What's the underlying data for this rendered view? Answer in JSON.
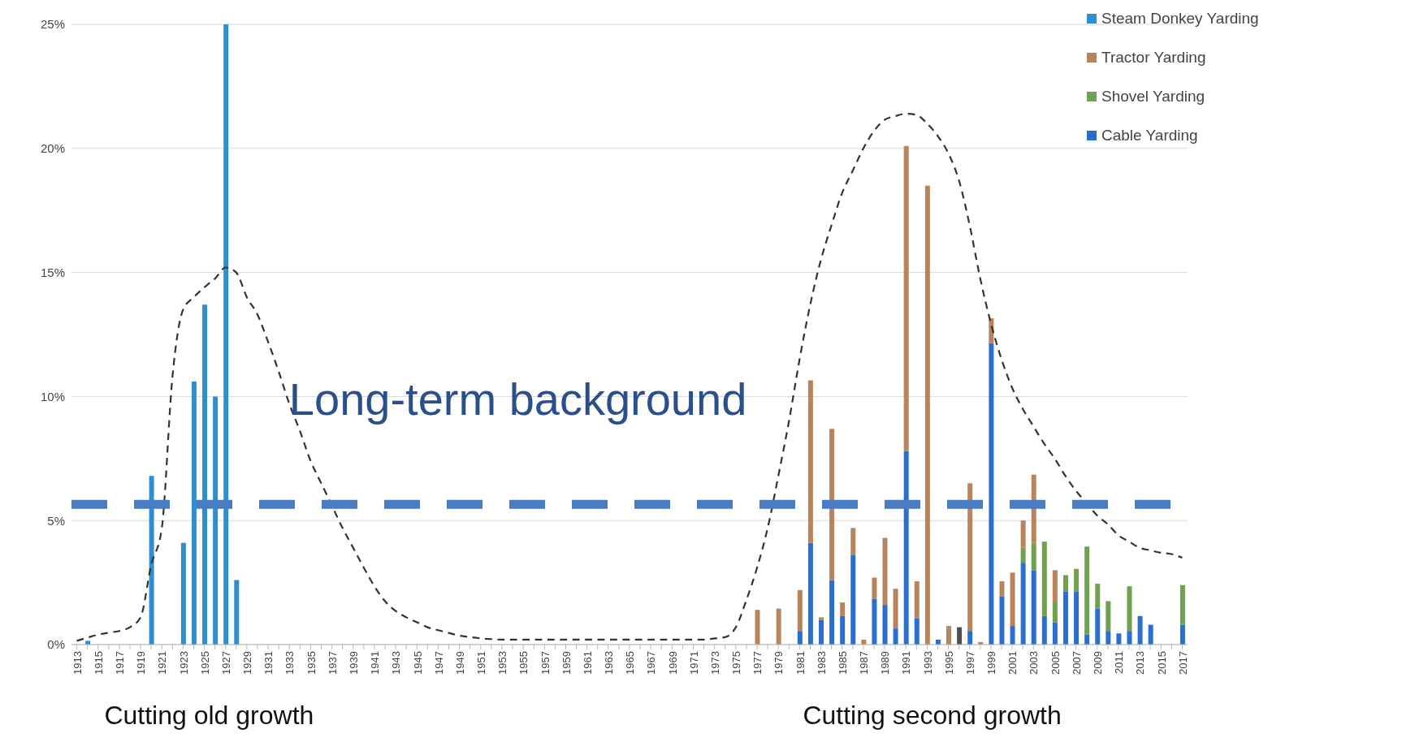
{
  "chart_data": {
    "type": "bar",
    "stacked": true,
    "grid": "y",
    "legend": "top right",
    "categories": [
      "1913",
      null,
      "1915",
      null,
      "1917",
      null,
      "1919",
      null,
      "1921",
      null,
      "1923",
      null,
      "1925",
      null,
      "1927",
      null,
      "1929",
      null,
      "1931",
      null,
      "1933",
      null,
      "1935",
      null,
      "1937",
      null,
      "1939",
      null,
      "1941",
      null,
      "1943",
      null,
      "1945",
      null,
      "1947",
      null,
      "1949",
      null,
      "1951",
      null,
      "1953",
      null,
      "1955",
      null,
      "1957",
      null,
      "1959",
      null,
      "1961",
      null,
      "1963",
      null,
      "1965",
      null,
      "1967",
      null,
      "1969",
      null,
      "1971",
      null,
      "1973",
      null,
      "1975",
      null,
      "1977",
      null,
      "1979",
      null,
      "1981",
      null,
      "1983",
      null,
      "1985",
      null,
      "1987",
      null,
      "1989",
      null,
      "1991",
      null,
      "1993",
      null,
      "1995",
      null,
      "1997",
      null,
      "1999",
      null,
      "2001",
      null,
      "2003",
      null,
      "2005",
      null,
      "2007",
      null,
      "2009",
      null,
      "2011",
      null,
      "2013",
      null,
      "2015",
      null,
      "2017"
    ],
    "ylim": [
      0,
      25
    ],
    "yticks": [
      {
        "value": 0,
        "label": "0%"
      },
      {
        "value": 5,
        "label": "5%"
      },
      {
        "value": 10,
        "label": "10%"
      },
      {
        "value": 15,
        "label": "15%"
      },
      {
        "value": 20,
        "label": "20%"
      },
      {
        "value": 25,
        "label": "25%"
      }
    ],
    "series": [
      {
        "name": "Cable Yarding",
        "color": "#2a6fd0",
        "values": [
          null,
          null,
          null,
          null,
          null,
          null,
          null,
          null,
          null,
          null,
          null,
          null,
          null,
          null,
          null,
          null,
          null,
          null,
          null,
          null,
          null,
          null,
          null,
          null,
          null,
          null,
          null,
          null,
          null,
          null,
          null,
          null,
          null,
          null,
          null,
          null,
          null,
          null,
          null,
          null,
          null,
          null,
          null,
          null,
          null,
          null,
          null,
          null,
          null,
          null,
          null,
          null,
          null,
          null,
          null,
          null,
          null,
          null,
          null,
          null,
          null,
          null,
          null,
          null,
          null,
          null,
          null,
          null,
          0.55,
          4.1,
          1.0,
          2.6,
          1.15,
          3.6,
          null,
          1.85,
          1.6,
          0.65,
          7.8,
          1.05,
          null,
          0.2,
          null,
          null,
          0.55,
          null,
          12.15,
          1.95,
          0.75,
          3.3,
          3.0,
          1.15,
          0.9,
          2.15,
          2.15,
          0.4,
          1.45,
          0.55,
          0.45,
          0.55,
          1.15,
          0.8,
          null,
          null,
          0.8
        ]
      },
      {
        "name": "Shovel Yarding",
        "color": "#70a050",
        "values": [
          null,
          null,
          null,
          null,
          null,
          null,
          null,
          null,
          null,
          null,
          null,
          null,
          null,
          null,
          null,
          null,
          null,
          null,
          null,
          null,
          null,
          null,
          null,
          null,
          null,
          null,
          null,
          null,
          null,
          null,
          null,
          null,
          null,
          null,
          null,
          null,
          null,
          null,
          null,
          null,
          null,
          null,
          null,
          null,
          null,
          null,
          null,
          null,
          null,
          null,
          null,
          null,
          null,
          null,
          null,
          null,
          null,
          null,
          null,
          null,
          null,
          null,
          null,
          null,
          null,
          null,
          null,
          null,
          null,
          null,
          null,
          null,
          null,
          null,
          null,
          null,
          null,
          null,
          null,
          null,
          null,
          null,
          null,
          null,
          null,
          null,
          null,
          null,
          null,
          0.6,
          1.1,
          3.0,
          0.8,
          0.65,
          0.9,
          3.55,
          1.0,
          1.2,
          null,
          1.8,
          null,
          null,
          null,
          null,
          1.6
        ]
      },
      {
        "name": "Tractor Yarding",
        "color": "#b8845e",
        "values": [
          null,
          null,
          null,
          null,
          null,
          null,
          null,
          null,
          null,
          null,
          null,
          null,
          null,
          null,
          null,
          null,
          null,
          null,
          null,
          null,
          null,
          null,
          null,
          null,
          null,
          null,
          null,
          null,
          null,
          null,
          null,
          null,
          null,
          null,
          null,
          null,
          null,
          null,
          null,
          null,
          null,
          null,
          null,
          null,
          null,
          null,
          null,
          null,
          null,
          null,
          null,
          null,
          null,
          null,
          null,
          null,
          null,
          null,
          null,
          null,
          null,
          null,
          null,
          null,
          1.4,
          null,
          1.45,
          null,
          1.65,
          6.55,
          0.1,
          6.1,
          0.55,
          1.1,
          0.2,
          0.85,
          2.7,
          1.6,
          12.3,
          1.5,
          18.5,
          null,
          0.75,
          null,
          5.95,
          0.1,
          1.0,
          0.6,
          2.15,
          1.1,
          2.75,
          null,
          1.3,
          null,
          null,
          null,
          null,
          null,
          null,
          null,
          null,
          null,
          null,
          null,
          null
        ]
      },
      {
        "name": "Steam Donkey Yarding",
        "color": "#2e8fd0",
        "values": [
          null,
          0.15,
          null,
          null,
          null,
          null,
          null,
          6.8,
          null,
          null,
          4.1,
          10.6,
          13.7,
          10,
          25,
          2.6,
          null,
          null,
          null,
          null,
          null,
          null,
          null,
          null,
          null,
          null,
          null,
          null,
          null,
          null,
          null,
          null,
          null,
          null,
          null,
          null,
          null,
          null,
          null,
          null,
          null,
          null,
          null,
          null,
          null,
          null,
          null,
          null,
          null,
          null,
          null,
          null,
          null,
          null,
          null,
          null,
          null,
          null,
          null,
          null,
          null,
          null,
          null,
          null,
          null,
          null,
          null,
          null,
          null,
          null,
          null,
          null,
          null,
          null,
          null,
          null,
          null,
          null,
          null,
          null,
          null,
          null,
          null,
          null,
          null,
          null,
          null,
          null,
          null,
          null,
          null,
          null,
          null,
          null,
          null,
          null,
          null,
          null,
          null,
          null,
          null,
          null,
          null,
          null,
          null
        ]
      },
      {
        "color": "#505050",
        "values": [
          null,
          null,
          null,
          null,
          null,
          null,
          null,
          null,
          null,
          null,
          null,
          null,
          null,
          null,
          null,
          null,
          null,
          null,
          null,
          null,
          null,
          null,
          null,
          null,
          null,
          null,
          null,
          null,
          null,
          null,
          null,
          null,
          null,
          null,
          null,
          null,
          null,
          null,
          null,
          null,
          null,
          null,
          null,
          null,
          null,
          null,
          null,
          null,
          null,
          null,
          null,
          null,
          null,
          null,
          null,
          null,
          null,
          null,
          null,
          null,
          null,
          null,
          null,
          null,
          null,
          null,
          null,
          null,
          null,
          null,
          null,
          null,
          null,
          null,
          null,
          null,
          null,
          null,
          null,
          null,
          null,
          null,
          null,
          0.7,
          null,
          null,
          null,
          null,
          null,
          null,
          null,
          null,
          null,
          null,
          null,
          null,
          null,
          null,
          null,
          null,
          null,
          null,
          null,
          null,
          null
        ]
      },
      {
        "type": "line",
        "color": "#333333",
        "line_style": "dashed",
        "values": [
          0.15,
          0.28,
          0.4,
          0.48,
          0.55,
          0.7,
          1.1,
          3.2,
          4.7,
          10.8,
          13.5,
          14.0,
          14.4,
          14.75,
          15.2,
          15.0,
          14.0,
          13.3,
          12.2,
          11.0,
          9.7,
          8.6,
          7.4,
          6.5,
          5.6,
          4.7,
          3.9,
          3.1,
          2.35,
          1.75,
          1.35,
          1.1,
          0.9,
          0.7,
          0.58,
          0.47,
          0.36,
          0.3,
          0.25,
          0.22,
          0.2,
          0.2,
          0.2,
          0.2,
          0.2,
          0.2,
          0.2,
          0.2,
          0.2,
          0.2,
          0.2,
          0.2,
          0.2,
          0.2,
          0.2,
          0.2,
          0.2,
          0.2,
          0.2,
          0.2,
          0.25,
          0.3,
          0.7,
          1.8,
          3.1,
          4.7,
          6.8,
          9.0,
          11.5,
          13.7,
          15.5,
          16.9,
          18.2,
          19.1,
          20.0,
          20.7,
          21.15,
          21.3,
          21.4,
          21.35,
          21.0,
          20.5,
          19.8,
          18.7,
          16.9,
          14.75,
          12.95,
          11.5,
          10.35,
          9.5,
          8.8,
          8.1,
          7.5,
          6.8,
          6.2,
          5.7,
          5.2,
          4.85,
          4.4,
          4.15,
          3.9,
          3.8,
          3.7,
          3.65,
          3.5
        ]
      }
    ],
    "ref_lines": [
      {
        "axis": "y",
        "value": 5.65,
        "label": "Long-term background",
        "color": "#4a7cc4",
        "line_style": "dashed"
      }
    ],
    "annotations": [
      "Cutting old growth",
      "Cutting second growth"
    ]
  }
}
